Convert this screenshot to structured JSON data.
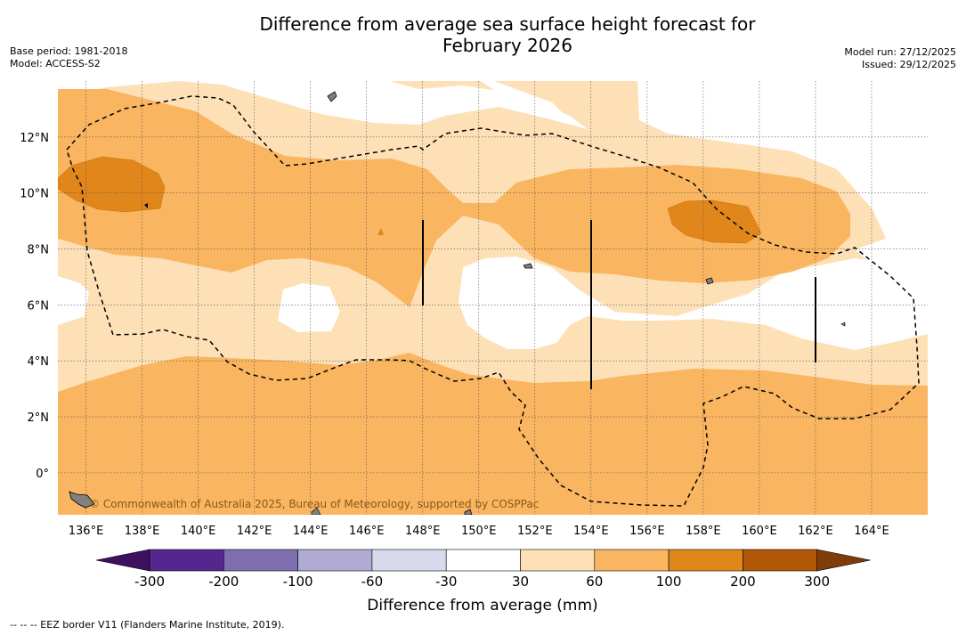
{
  "title": {
    "line1": "Difference from average sea surface height forecast for",
    "line2": "February 2026"
  },
  "meta_left": {
    "base_period": "Base period: 1981-2018",
    "model": "Model: ACCESS-S2"
  },
  "meta_right": {
    "model_run": "Model run: 27/12/2025",
    "issued": "Issued: 29/12/2025"
  },
  "map": {
    "lon_range": [
      135,
      166
    ],
    "lat_range": [
      -1.5,
      14
    ],
    "lon_ticks": [
      "136°E",
      "138°E",
      "140°E",
      "142°E",
      "144°E",
      "146°E",
      "148°E",
      "150°E",
      "152°E",
      "154°E",
      "156°E",
      "158°E",
      "160°E",
      "162°E",
      "164°E"
    ],
    "lat_ticks": [
      "12°N",
      "10°N",
      "8°N",
      "6°N",
      "4°N",
      "2°N",
      "0°"
    ],
    "credit": "© Commonwealth of Australia 2025, Bureau of Meteorology, supported by COSPPac",
    "eez_border_style": "dashed black",
    "colors": {
      "30_60": "#fde0b6",
      "60_100": "#f9b560",
      "100_200": "#e1861a",
      "land": "#808080"
    }
  },
  "colorbar": {
    "title": "Difference from average (mm)",
    "labels": [
      "-300",
      "-200",
      "-100",
      "-60",
      "-30",
      "30",
      "60",
      "100",
      "200",
      "300"
    ],
    "colors": [
      "#3e1060",
      "#54278f",
      "#7f6eae",
      "#b0abd2",
      "#d8d9eb",
      "#ffffff",
      "#fde0b6",
      "#f9b560",
      "#e1861a",
      "#b35806",
      "#7f3b08"
    ]
  },
  "footnote": "-- -- -- EEZ border V11 (Flanders Marine Institute, 2019)."
}
